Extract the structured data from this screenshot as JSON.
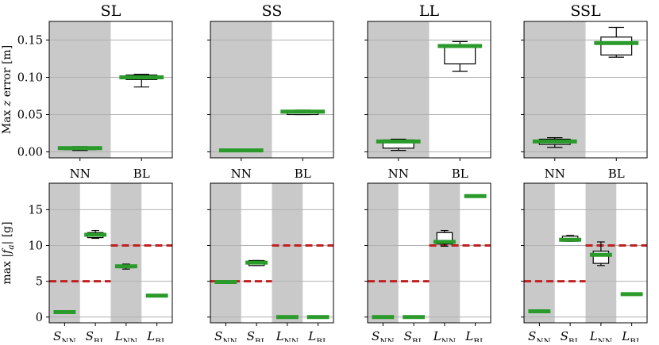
{
  "chart_data": [
    {
      "type": "box",
      "title": "SL",
      "ylabel": "Max z error [m]",
      "ylabel_pre": "Max ",
      "ylabel_var": "z",
      "ylabel_post": " error [m]",
      "categories": [
        "NN",
        "BL"
      ],
      "ylim": [
        -0.008,
        0.175
      ],
      "yticks": [
        "0.00",
        "0.05",
        "0.10",
        "0.15"
      ],
      "ytick_values": [
        0,
        0.05,
        0.1,
        0.15
      ],
      "shaded": [
        0
      ],
      "boxes": [
        {
          "min": 0.002,
          "q1": 0.003,
          "median": 0.005,
          "q3": 0.006,
          "max": 0.007
        },
        {
          "min": 0.087,
          "q1": 0.097,
          "median": 0.1,
          "q3": 0.103,
          "max": 0.104
        }
      ]
    },
    {
      "type": "box",
      "title": "SS",
      "categories": [
        "NN",
        "BL"
      ],
      "ylim": [
        -0.008,
        0.175
      ],
      "ytick_values": [
        0,
        0.05,
        0.1,
        0.15
      ],
      "shaded": [
        0
      ],
      "boxes": [
        {
          "min": 0.001,
          "q1": 0.001,
          "median": 0.002,
          "q3": 0.003,
          "max": 0.003
        },
        {
          "min": 0.05,
          "q1": 0.05,
          "median": 0.054,
          "q3": 0.055,
          "max": 0.056
        }
      ]
    },
    {
      "type": "box",
      "title": "LL",
      "categories": [
        "NN",
        "BL"
      ],
      "ylim": [
        -0.008,
        0.175
      ],
      "ytick_values": [
        0,
        0.05,
        0.1,
        0.15
      ],
      "shaded": [
        0
      ],
      "boxes": [
        {
          "min": 0.002,
          "q1": 0.005,
          "median": 0.014,
          "q3": 0.016,
          "max": 0.017
        },
        {
          "min": 0.108,
          "q1": 0.118,
          "median": 0.142,
          "q3": 0.144,
          "max": 0.148
        }
      ]
    },
    {
      "type": "box",
      "title": "SSL",
      "categories": [
        "NN",
        "BL"
      ],
      "ylim": [
        -0.008,
        0.175
      ],
      "ytick_values": [
        0,
        0.05,
        0.1,
        0.15
      ],
      "shaded": [
        0
      ],
      "boxes": [
        {
          "min": 0.006,
          "q1": 0.01,
          "median": 0.014,
          "q3": 0.017,
          "max": 0.019
        },
        {
          "min": 0.127,
          "q1": 0.13,
          "median": 0.146,
          "q3": 0.154,
          "max": 0.167
        }
      ]
    },
    {
      "type": "box",
      "ylabel": "max |f_a| [g]",
      "ylabel_pre": "max |",
      "ylabel_var": "f",
      "ylabel_sub": "a",
      "ylabel_post": "| [g]",
      "categories": [
        {
          "main": "S",
          "sub": "NN"
        },
        {
          "main": "S",
          "sub": "BL"
        },
        {
          "main": "L",
          "sub": "NN"
        },
        {
          "main": "L",
          "sub": "BL"
        }
      ],
      "ylim": [
        -0.8,
        18.7
      ],
      "yticks": [
        "0",
        "5",
        "10",
        "15"
      ],
      "ytick_values": [
        0,
        5,
        10,
        15
      ],
      "shaded": [
        0,
        2
      ],
      "thresholds": [
        {
          "value": 5,
          "from": 0,
          "to": 1
        },
        {
          "value": 10,
          "from": 2,
          "to": 3
        }
      ],
      "boxes": [
        {
          "min": 0.7,
          "q1": 0.7,
          "median": 0.7,
          "q3": 0.7,
          "max": 0.7
        },
        {
          "min": 11.0,
          "q1": 11.1,
          "median": 11.5,
          "q3": 11.8,
          "max": 12.1
        },
        {
          "min": 6.7,
          "q1": 6.9,
          "median": 7.1,
          "q3": 7.2,
          "max": 7.4
        },
        {
          "min": 3.0,
          "q1": 3.0,
          "median": 3.0,
          "q3": 3.0,
          "max": 3.0
        }
      ]
    },
    {
      "type": "box",
      "categories": [
        {
          "main": "S",
          "sub": "NN"
        },
        {
          "main": "S",
          "sub": "BL"
        },
        {
          "main": "L",
          "sub": "NN"
        },
        {
          "main": "L",
          "sub": "BL"
        }
      ],
      "ylim": [
        -0.8,
        18.7
      ],
      "ytick_values": [
        0,
        5,
        10,
        15
      ],
      "shaded": [
        0,
        2
      ],
      "thresholds": [
        {
          "value": 5,
          "from": 0,
          "to": 1
        },
        {
          "value": 10,
          "from": 2,
          "to": 3
        }
      ],
      "boxes": [
        {
          "min": 4.9,
          "q1": 4.9,
          "median": 4.9,
          "q3": 5.0,
          "max": 5.0
        },
        {
          "min": 7.2,
          "q1": 7.2,
          "median": 7.6,
          "q3": 7.9,
          "max": 7.9
        },
        {
          "min": 0.0,
          "q1": 0.0,
          "median": 0.0,
          "q3": 0.0,
          "max": 0.0
        },
        {
          "min": 0.0,
          "q1": 0.0,
          "median": 0.0,
          "q3": 0.0,
          "max": 0.0
        }
      ]
    },
    {
      "type": "box",
      "categories": [
        {
          "main": "S",
          "sub": "NN"
        },
        {
          "main": "S",
          "sub": "BL"
        },
        {
          "main": "L",
          "sub": "NN"
        },
        {
          "main": "L",
          "sub": "BL"
        }
      ],
      "ylim": [
        -0.8,
        18.7
      ],
      "ytick_values": [
        0,
        5,
        10,
        15
      ],
      "shaded": [
        0,
        2
      ],
      "thresholds": [
        {
          "value": 5,
          "from": 0,
          "to": 1
        },
        {
          "value": 10,
          "from": 2,
          "to": 3
        }
      ],
      "boxes": [
        {
          "min": 0.0,
          "q1": 0.0,
          "median": 0.0,
          "q3": 0.0,
          "max": 0.0
        },
        {
          "min": 0.0,
          "q1": 0.0,
          "median": 0.0,
          "q3": 0.0,
          "max": 0.0
        },
        {
          "min": 9.9,
          "q1": 10.2,
          "median": 10.5,
          "q3": 11.8,
          "max": 12.1
        },
        {
          "min": 16.9,
          "q1": 16.9,
          "median": 16.9,
          "q3": 16.9,
          "max": 16.9
        }
      ]
    },
    {
      "type": "box",
      "categories": [
        {
          "main": "S",
          "sub": "NN"
        },
        {
          "main": "S",
          "sub": "BL"
        },
        {
          "main": "L",
          "sub": "NN"
        },
        {
          "main": "L",
          "sub": "BL"
        }
      ],
      "ylim": [
        -0.8,
        18.7
      ],
      "ytick_values": [
        0,
        5,
        10,
        15
      ],
      "shaded": [
        0,
        2
      ],
      "thresholds": [
        {
          "value": 5,
          "from": 0,
          "to": 1
        },
        {
          "value": 10,
          "from": 2,
          "to": 3
        }
      ],
      "boxes": [
        {
          "min": 0.8,
          "q1": 0.8,
          "median": 0.8,
          "q3": 0.8,
          "max": 0.8
        },
        {
          "min": 10.6,
          "q1": 10.6,
          "median": 10.8,
          "q3": 11.3,
          "max": 11.4
        },
        {
          "min": 7.2,
          "q1": 7.5,
          "median": 8.7,
          "q3": 9.2,
          "max": 10.5
        },
        {
          "min": 3.2,
          "q1": 3.2,
          "median": 3.2,
          "q3": 3.2,
          "max": 3.2
        }
      ]
    }
  ],
  "colors": {
    "shade": "#c9c9c9",
    "median": "#2a9a2a",
    "threshold": "#c02020",
    "grid": "#b0b0b0",
    "box": "#000000"
  }
}
